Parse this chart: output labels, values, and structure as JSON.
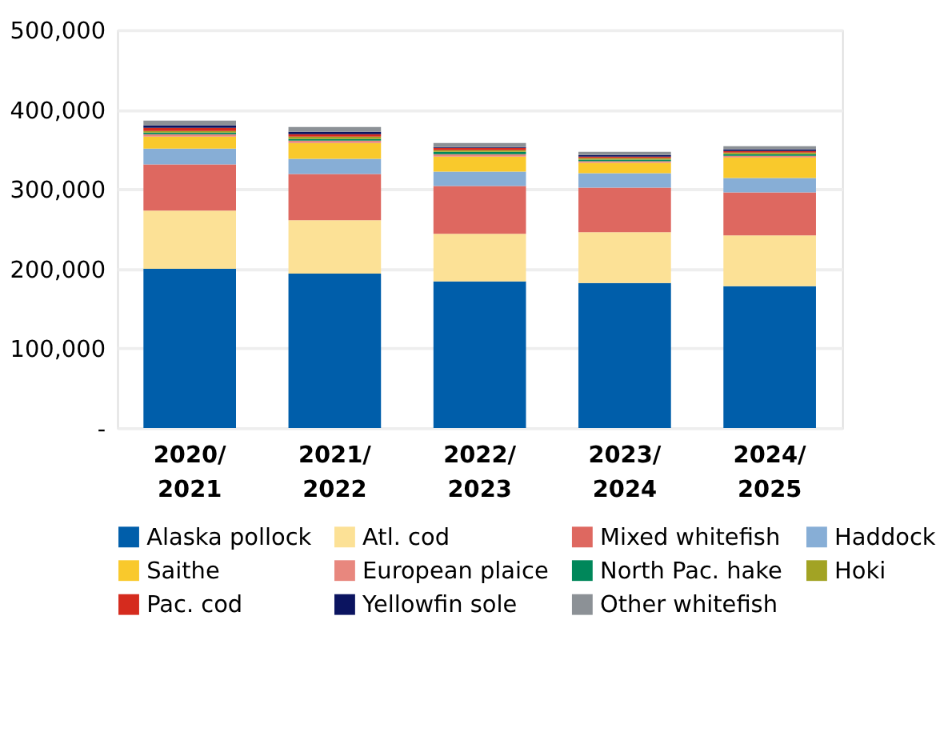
{
  "chart_data": {
    "type": "bar",
    "stacked": true,
    "categories": [
      "2020/2021",
      "2021/2022",
      "2022/2023",
      "2023/2024",
      "2024/2025"
    ],
    "series": [
      {
        "name": "Alaska pollock",
        "color": "#005eaa",
        "values": [
          200000,
          194000,
          184000,
          182000,
          178000
        ]
      },
      {
        "name": "Atl. cod",
        "color": "#fce196",
        "values": [
          73000,
          67000,
          60000,
          64000,
          64000
        ]
      },
      {
        "name": "Mixed whitefish",
        "color": "#de6860",
        "values": [
          58000,
          58000,
          60000,
          56000,
          54000
        ]
      },
      {
        "name": "Haddock",
        "color": "#87aed6",
        "values": [
          20000,
          19000,
          18000,
          18000,
          18000
        ]
      },
      {
        "name": "Saithe",
        "color": "#f9c92c",
        "values": [
          15000,
          20000,
          19000,
          13000,
          26000
        ]
      },
      {
        "name": "European plaice",
        "color": "#e8877e",
        "values": [
          3000,
          3000,
          3000,
          2000,
          2000
        ]
      },
      {
        "name": "North Pac. hake",
        "color": "#00875a",
        "values": [
          2000,
          2000,
          3000,
          2000,
          2000
        ]
      },
      {
        "name": "Hoki",
        "color": "#a2a324",
        "values": [
          2000,
          3000,
          2000,
          2000,
          2000
        ]
      },
      {
        "name": "Pac. cod",
        "color": "#d52b1e",
        "values": [
          4000,
          3000,
          3000,
          2000,
          2000
        ]
      },
      {
        "name": "Yellowfin sole",
        "color": "#0b1460",
        "values": [
          3000,
          3000,
          1000,
          2000,
          2000
        ]
      },
      {
        "name": "Other whitefish",
        "color": "#8c9196",
        "values": [
          6000,
          6000,
          5000,
          4000,
          4000
        ]
      }
    ],
    "ylim": [
      0,
      500000
    ],
    "yticks": [
      {
        "value": 0,
        "label": "-"
      },
      {
        "value": 100000,
        "label": "100,000"
      },
      {
        "value": 200000,
        "label": "200,000"
      },
      {
        "value": 300000,
        "label": "300,000"
      },
      {
        "value": 400000,
        "label": "400,000"
      },
      {
        "value": 500000,
        "label": "500,000"
      }
    ],
    "grid": "y",
    "legend": "bottom"
  }
}
